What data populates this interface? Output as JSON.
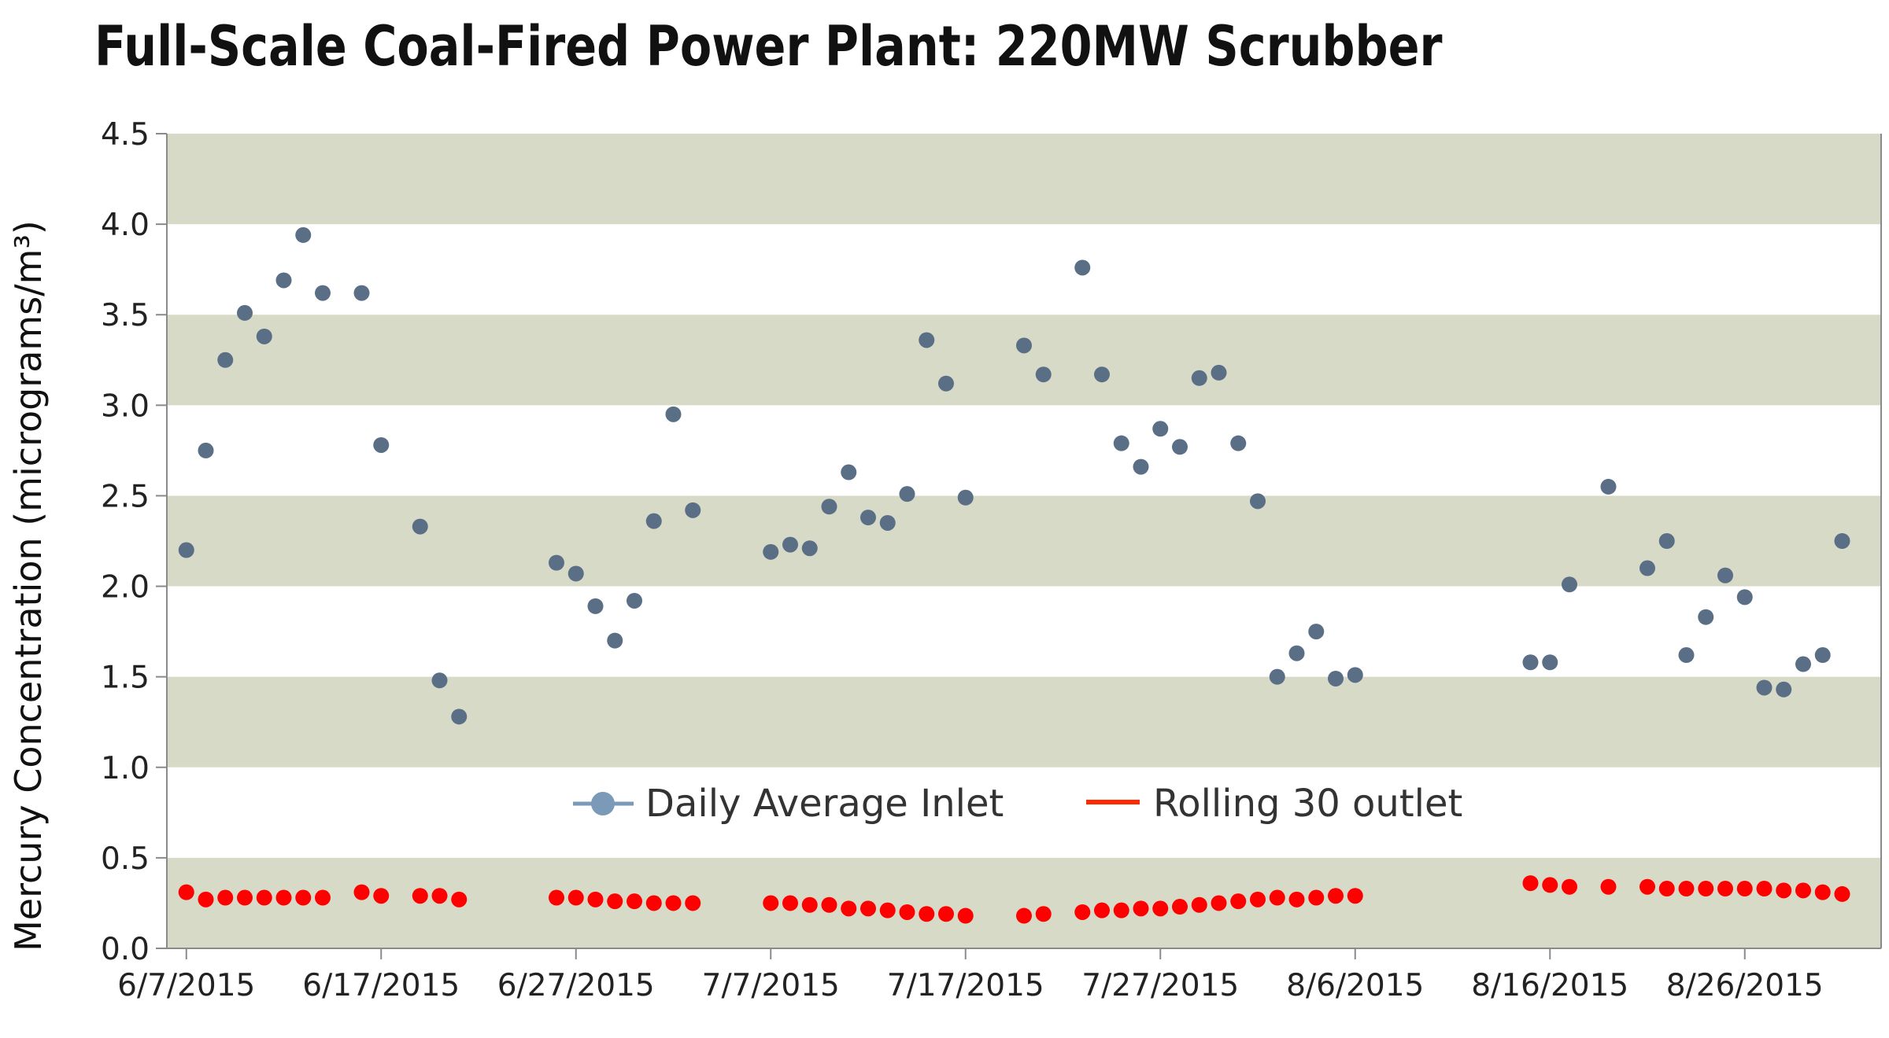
{
  "chart_data": {
    "type": "scatter",
    "title": "Full-Scale Coal-Fired Power Plant: 220MW Scrubber",
    "ylabel": "Mercury Concentration (micrograms/m³)",
    "xlabel": "",
    "x_type": "date",
    "xlim": [
      "2015-06-06",
      "2015-09-02"
    ],
    "ylim": [
      0,
      4.5
    ],
    "x_ticks": [
      "2015-06-07",
      "2015-06-17",
      "2015-06-27",
      "2015-07-07",
      "2015-07-17",
      "2015-07-27",
      "2015-08-06",
      "2015-08-16",
      "2015-08-26"
    ],
    "x_tick_labels": [
      "6/7/2015",
      "6/17/2015",
      "6/27/2015",
      "7/7/2015",
      "7/17/2015",
      "7/27/2015",
      "8/6/2015",
      "8/16/2015",
      "8/26/2015"
    ],
    "y_ticks": [
      0,
      0.5,
      1.0,
      1.5,
      2.0,
      2.5,
      3.0,
      3.5,
      4.0,
      4.5
    ],
    "y_tick_labels": [
      "0.0",
      "0.5",
      "1.0",
      "1.5",
      "2.0",
      "2.5",
      "3.0",
      "3.5",
      "4.0",
      "4.5"
    ],
    "background_bands": "alternating horizontal bands every 0.5",
    "band_color": "#d8dac8",
    "grid": false,
    "legend_position": "center",
    "series": [
      {
        "name": "Daily Average Inlet",
        "color": "#5a6f86",
        "legend_color": "#7a9ab8",
        "points": [
          [
            "2015-06-07",
            2.2
          ],
          [
            "2015-06-08",
            2.75
          ],
          [
            "2015-06-09",
            3.25
          ],
          [
            "2015-06-10",
            3.51
          ],
          [
            "2015-06-11",
            3.38
          ],
          [
            "2015-06-12",
            3.69
          ],
          [
            "2015-06-13",
            3.94
          ],
          [
            "2015-06-14",
            3.62
          ],
          [
            "2015-06-16",
            3.62
          ],
          [
            "2015-06-17",
            2.78
          ],
          [
            "2015-06-19",
            2.33
          ],
          [
            "2015-06-20",
            1.48
          ],
          [
            "2015-06-21",
            1.28
          ],
          [
            "2015-06-26",
            2.13
          ],
          [
            "2015-06-27",
            2.07
          ],
          [
            "2015-06-28",
            1.89
          ],
          [
            "2015-06-29",
            1.7
          ],
          [
            "2015-06-30",
            1.92
          ],
          [
            "2015-07-01",
            2.36
          ],
          [
            "2015-07-02",
            2.95
          ],
          [
            "2015-07-03",
            2.42
          ],
          [
            "2015-07-07",
            2.19
          ],
          [
            "2015-07-08",
            2.23
          ],
          [
            "2015-07-09",
            2.21
          ],
          [
            "2015-07-10",
            2.44
          ],
          [
            "2015-07-11",
            2.63
          ],
          [
            "2015-07-12",
            2.38
          ],
          [
            "2015-07-13",
            2.35
          ],
          [
            "2015-07-14",
            2.51
          ],
          [
            "2015-07-15",
            3.36
          ],
          [
            "2015-07-16",
            3.12
          ],
          [
            "2015-07-17",
            2.49
          ],
          [
            "2015-07-20",
            3.33
          ],
          [
            "2015-07-21",
            3.17
          ],
          [
            "2015-07-23",
            3.76
          ],
          [
            "2015-07-24",
            3.17
          ],
          [
            "2015-07-25",
            2.79
          ],
          [
            "2015-07-26",
            2.66
          ],
          [
            "2015-07-27",
            2.87
          ],
          [
            "2015-07-28",
            2.77
          ],
          [
            "2015-07-29",
            3.15
          ],
          [
            "2015-07-30",
            3.18
          ],
          [
            "2015-07-31",
            2.79
          ],
          [
            "2015-08-01",
            2.47
          ],
          [
            "2015-08-02",
            1.5
          ],
          [
            "2015-08-03",
            1.63
          ],
          [
            "2015-08-04",
            1.75
          ],
          [
            "2015-08-05",
            1.49
          ],
          [
            "2015-08-06",
            1.51
          ],
          [
            "2015-08-15",
            1.58
          ],
          [
            "2015-08-16",
            1.58
          ],
          [
            "2015-08-17",
            2.01
          ],
          [
            "2015-08-19",
            2.55
          ],
          [
            "2015-08-21",
            2.1
          ],
          [
            "2015-08-22",
            2.25
          ],
          [
            "2015-08-23",
            1.62
          ],
          [
            "2015-08-24",
            1.83
          ],
          [
            "2015-08-25",
            2.06
          ],
          [
            "2015-08-26",
            1.94
          ],
          [
            "2015-08-27",
            1.44
          ],
          [
            "2015-08-28",
            1.43
          ],
          [
            "2015-08-29",
            1.57
          ],
          [
            "2015-08-30",
            1.62
          ],
          [
            "2015-08-31",
            2.25
          ]
        ]
      },
      {
        "name": "Rolling 30 outlet",
        "color": "#ff0000",
        "legend_color": "#ff2a00",
        "points": [
          [
            "2015-06-07",
            0.31
          ],
          [
            "2015-06-08",
            0.27
          ],
          [
            "2015-06-09",
            0.28
          ],
          [
            "2015-06-10",
            0.28
          ],
          [
            "2015-06-11",
            0.28
          ],
          [
            "2015-06-12",
            0.28
          ],
          [
            "2015-06-13",
            0.28
          ],
          [
            "2015-06-14",
            0.28
          ],
          [
            "2015-06-16",
            0.31
          ],
          [
            "2015-06-17",
            0.29
          ],
          [
            "2015-06-19",
            0.29
          ],
          [
            "2015-06-20",
            0.29
          ],
          [
            "2015-06-21",
            0.27
          ],
          [
            "2015-06-26",
            0.28
          ],
          [
            "2015-06-27",
            0.28
          ],
          [
            "2015-06-28",
            0.27
          ],
          [
            "2015-06-29",
            0.26
          ],
          [
            "2015-06-30",
            0.26
          ],
          [
            "2015-07-01",
            0.25
          ],
          [
            "2015-07-02",
            0.25
          ],
          [
            "2015-07-03",
            0.25
          ],
          [
            "2015-07-07",
            0.25
          ],
          [
            "2015-07-08",
            0.25
          ],
          [
            "2015-07-09",
            0.24
          ],
          [
            "2015-07-10",
            0.24
          ],
          [
            "2015-07-11",
            0.22
          ],
          [
            "2015-07-12",
            0.22
          ],
          [
            "2015-07-13",
            0.21
          ],
          [
            "2015-07-14",
            0.2
          ],
          [
            "2015-07-15",
            0.19
          ],
          [
            "2015-07-16",
            0.19
          ],
          [
            "2015-07-17",
            0.18
          ],
          [
            "2015-07-20",
            0.18
          ],
          [
            "2015-07-21",
            0.19
          ],
          [
            "2015-07-23",
            0.2
          ],
          [
            "2015-07-24",
            0.21
          ],
          [
            "2015-07-25",
            0.21
          ],
          [
            "2015-07-26",
            0.22
          ],
          [
            "2015-07-27",
            0.22
          ],
          [
            "2015-07-28",
            0.23
          ],
          [
            "2015-07-29",
            0.24
          ],
          [
            "2015-07-30",
            0.25
          ],
          [
            "2015-07-31",
            0.26
          ],
          [
            "2015-08-01",
            0.27
          ],
          [
            "2015-08-02",
            0.28
          ],
          [
            "2015-08-03",
            0.27
          ],
          [
            "2015-08-04",
            0.28
          ],
          [
            "2015-08-05",
            0.29
          ],
          [
            "2015-08-06",
            0.29
          ],
          [
            "2015-08-15",
            0.36
          ],
          [
            "2015-08-16",
            0.35
          ],
          [
            "2015-08-17",
            0.34
          ],
          [
            "2015-08-19",
            0.34
          ],
          [
            "2015-08-21",
            0.34
          ],
          [
            "2015-08-22",
            0.33
          ],
          [
            "2015-08-23",
            0.33
          ],
          [
            "2015-08-24",
            0.33
          ],
          [
            "2015-08-25",
            0.33
          ],
          [
            "2015-08-26",
            0.33
          ],
          [
            "2015-08-27",
            0.33
          ],
          [
            "2015-08-28",
            0.32
          ],
          [
            "2015-08-29",
            0.32
          ],
          [
            "2015-08-30",
            0.31
          ],
          [
            "2015-08-31",
            0.3
          ]
        ]
      }
    ]
  }
}
